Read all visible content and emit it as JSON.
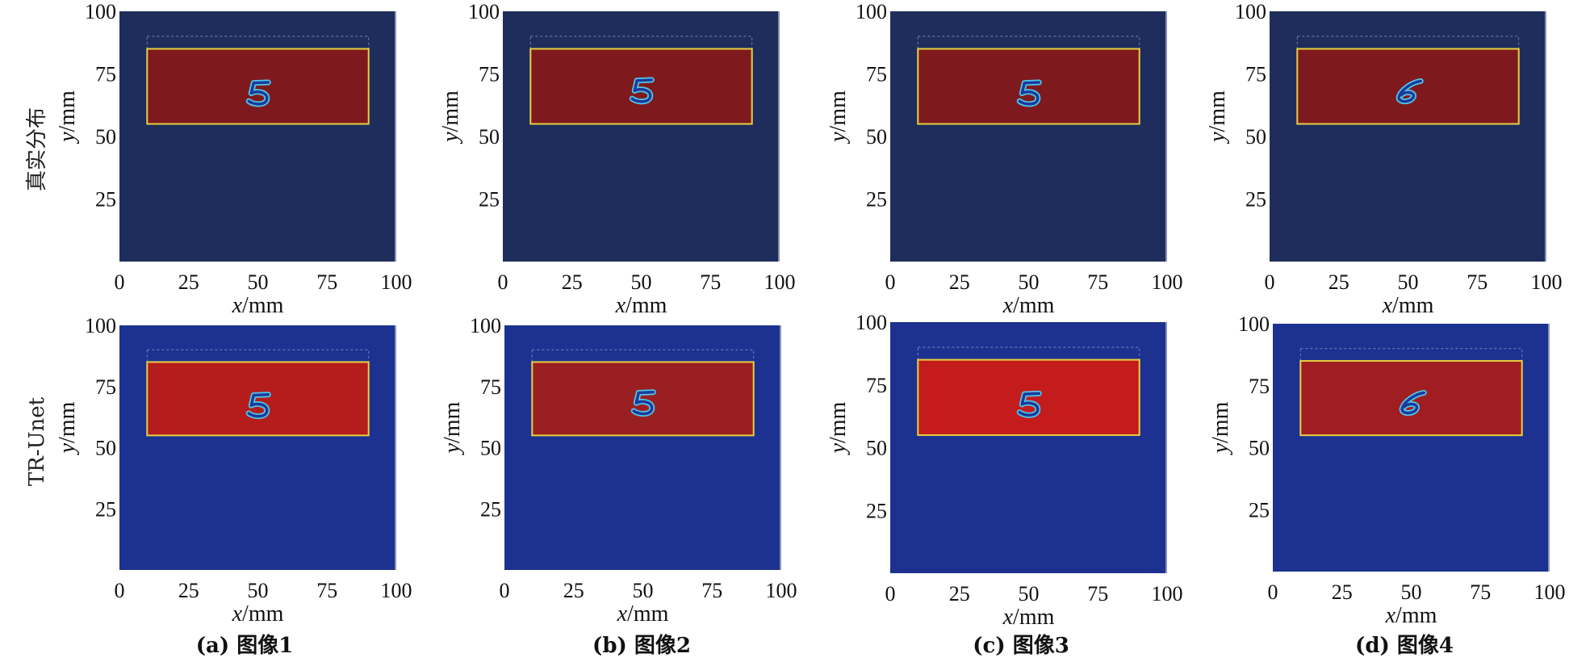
{
  "row_labels": [
    "真实分布",
    "TR-Unet"
  ],
  "captions": [
    "(a) 图像1",
    "(b) 图像2",
    "(c) 图像3",
    "(d) 图像4"
  ],
  "x_unit": "/mm",
  "y_unit": "/mm",
  "colors": {
    "background_true": "#1f2d5c",
    "background_pred": "#1d3290",
    "target_true": "#7e1a1e",
    "target_pred_1": "#b51d1c",
    "target_pred_2": "#9a1f22",
    "target_pred_3": "#c41b1c",
    "target_pred_4": "#a01e22",
    "rect_edge": "#e8d040",
    "digit_inner": "#1a3a9c",
    "digit_outline": "#4fc8e8"
  },
  "chart_data": [
    {
      "type": "heatmap",
      "row": "真实分布",
      "panel": "(a) 图像1",
      "digit": "5",
      "x": [
        0,
        25,
        50,
        75,
        100
      ],
      "y": [
        25,
        50,
        75,
        100
      ],
      "xlim": [
        0,
        100
      ],
      "ylim": [
        0,
        100
      ],
      "target_rect_mm": {
        "x": [
          10,
          90
        ],
        "y": [
          55,
          85
        ]
      },
      "digit_center_mm": [
        50,
        67
      ]
    },
    {
      "type": "heatmap",
      "row": "真实分布",
      "panel": "(b) 图像2",
      "digit": "5",
      "x": [
        0,
        25,
        50,
        75,
        100
      ],
      "y": [
        25,
        50,
        75,
        100
      ],
      "xlim": [
        0,
        100
      ],
      "ylim": [
        0,
        100
      ],
      "target_rect_mm": {
        "x": [
          10,
          90
        ],
        "y": [
          55,
          85
        ]
      },
      "digit_center_mm": [
        50,
        68
      ]
    },
    {
      "type": "heatmap",
      "row": "真实分布",
      "panel": "(c) 图像3",
      "digit": "5",
      "x": [
        0,
        25,
        50,
        75,
        100
      ],
      "y": [
        25,
        50,
        75,
        100
      ],
      "xlim": [
        0,
        100
      ],
      "ylim": [
        0,
        100
      ],
      "target_rect_mm": {
        "x": [
          10,
          90
        ],
        "y": [
          55,
          85
        ]
      },
      "digit_center_mm": [
        50,
        67
      ]
    },
    {
      "type": "heatmap",
      "row": "真实分布",
      "panel": "(d) 图像4",
      "digit": "6",
      "x": [
        0,
        25,
        50,
        75,
        100
      ],
      "y": [
        25,
        50,
        75,
        100
      ],
      "xlim": [
        0,
        100
      ],
      "ylim": [
        0,
        100
      ],
      "target_rect_mm": {
        "x": [
          10,
          90
        ],
        "y": [
          55,
          85
        ]
      },
      "digit_center_mm": [
        50,
        68
      ]
    },
    {
      "type": "heatmap",
      "row": "TR-Unet",
      "panel": "(a) 图像1",
      "digit": "5",
      "x": [
        0,
        25,
        50,
        75,
        100
      ],
      "y": [
        25,
        50,
        75,
        100
      ],
      "xlim": [
        0,
        100
      ],
      "ylim": [
        0,
        100
      ],
      "target_rect_mm": {
        "x": [
          10,
          90
        ],
        "y": [
          55,
          85
        ]
      },
      "digit_center_mm": [
        50,
        67
      ]
    },
    {
      "type": "heatmap",
      "row": "TR-Unet",
      "panel": "(b) 图像2",
      "digit": "5",
      "x": [
        0,
        25,
        50,
        75,
        100
      ],
      "y": [
        25,
        50,
        75,
        100
      ],
      "xlim": [
        0,
        100
      ],
      "ylim": [
        0,
        100
      ],
      "target_rect_mm": {
        "x": [
          10,
          90
        ],
        "y": [
          55,
          85
        ]
      },
      "digit_center_mm": [
        50,
        68
      ]
    },
    {
      "type": "heatmap",
      "row": "TR-Unet",
      "panel": "(c) 图像3",
      "digit": "5",
      "x": [
        0,
        25,
        50,
        75,
        100
      ],
      "y": [
        25,
        50,
        75,
        100
      ],
      "xlim": [
        0,
        100
      ],
      "ylim": [
        0,
        100
      ],
      "target_rect_mm": {
        "x": [
          10,
          90
        ],
        "y": [
          55,
          85
        ]
      },
      "digit_center_mm": [
        50,
        67
      ]
    },
    {
      "type": "heatmap",
      "row": "TR-Unet",
      "panel": "(d) 图像4",
      "digit": "6",
      "x": [
        0,
        25,
        50,
        75,
        100
      ],
      "y": [
        25,
        50,
        75,
        100
      ],
      "xlim": [
        0,
        100
      ],
      "ylim": [
        0,
        100
      ],
      "target_rect_mm": {
        "x": [
          10,
          90
        ],
        "y": [
          55,
          85
        ]
      },
      "digit_center_mm": [
        50,
        68
      ]
    }
  ]
}
